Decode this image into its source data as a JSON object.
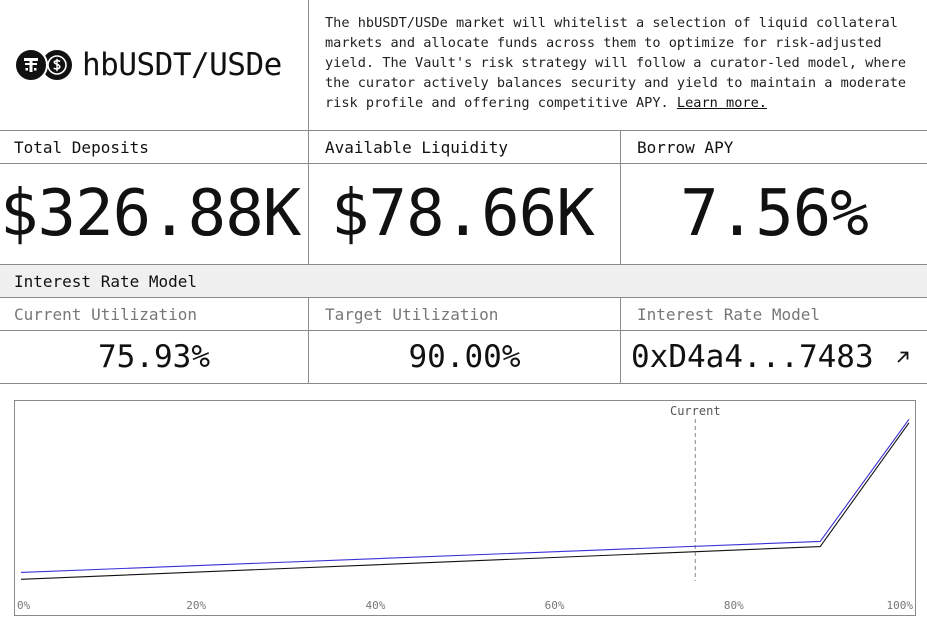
{
  "market": {
    "title": "hbUSDT/USDe",
    "description": "The hbUSDT/USDe market will whitelist a selection of liquid collateral markets and allocate funds across them to optimize for risk-adjusted yield. The Vault's risk strategy will follow a curator-led model, where the curator actively balances security and yield to maintain a moderate risk profile and offering competitive APY.",
    "learn_more": "Learn more.",
    "icons": [
      "tether-icon",
      "usde-icon"
    ]
  },
  "stats": {
    "total_deposits_label": "Total Deposits",
    "total_deposits_value": "$326.88K",
    "available_liquidity_label": "Available Liquidity",
    "available_liquidity_value": "$78.66K",
    "borrow_apy_label": "Borrow APY",
    "borrow_apy_value": "7.56%"
  },
  "irm": {
    "section_title": "Interest Rate Model",
    "current_utilization_label": "Current Utilization",
    "current_utilization_value": "75.93%",
    "target_utilization_label": "Target Utilization",
    "target_utilization_value": "90.00%",
    "model_label": "Interest Rate Model",
    "model_address": "0xD4a4...7483",
    "link_icon": "external-arrow-icon"
  },
  "chart_data": {
    "type": "line",
    "x_ticks": [
      "0%",
      "20%",
      "40%",
      "60%",
      "80%",
      "100%"
    ],
    "xlim": [
      0,
      100
    ],
    "ylim": [
      0,
      100
    ],
    "current_label": "Current",
    "current_x": 75.93,
    "series": [
      {
        "color": "#3b2fd6",
        "x": [
          0,
          90,
          100
        ],
        "y": [
          5,
          23,
          94
        ]
      },
      {
        "color": "#111111",
        "x": [
          0,
          90,
          100
        ],
        "y": [
          1,
          20,
          92
        ]
      }
    ]
  }
}
